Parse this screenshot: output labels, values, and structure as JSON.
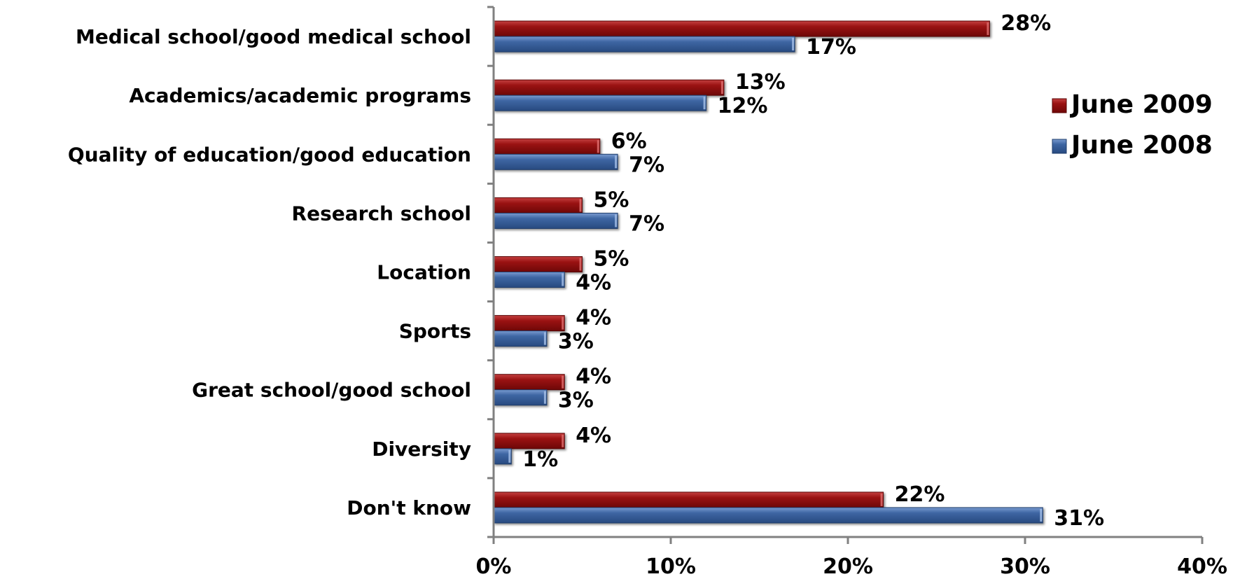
{
  "chart_data": {
    "type": "bar",
    "orientation": "horizontal",
    "categories": [
      "Medical school/good medical school",
      "Academics/academic programs",
      "Quality of education/good education",
      "Research school",
      "Location",
      "Sports",
      "Great school/good school",
      "Diversity",
      "Don't know"
    ],
    "series": [
      {
        "name": "June 2009",
        "color": "#8b0d0d",
        "values": [
          28,
          13,
          6,
          5,
          5,
          4,
          4,
          4,
          22
        ],
        "labels": [
          "28%",
          "13%",
          "6%",
          "5%",
          "5%",
          "4%",
          "4%",
          "4%",
          "22%"
        ]
      },
      {
        "name": "June 2008",
        "color": "#3a5f95",
        "values": [
          17,
          12,
          7,
          7,
          4,
          3,
          3,
          1,
          31
        ],
        "labels": [
          "17%",
          "12%",
          "7%",
          "7%",
          "4%",
          "3%",
          "3%",
          "1%",
          "31%"
        ]
      }
    ],
    "x_ticks": [
      "0%",
      "10%",
      "20%",
      "30%",
      "40%"
    ],
    "xlim": [
      0,
      40
    ],
    "unit": "%",
    "legend_position": "right",
    "grid": false
  }
}
